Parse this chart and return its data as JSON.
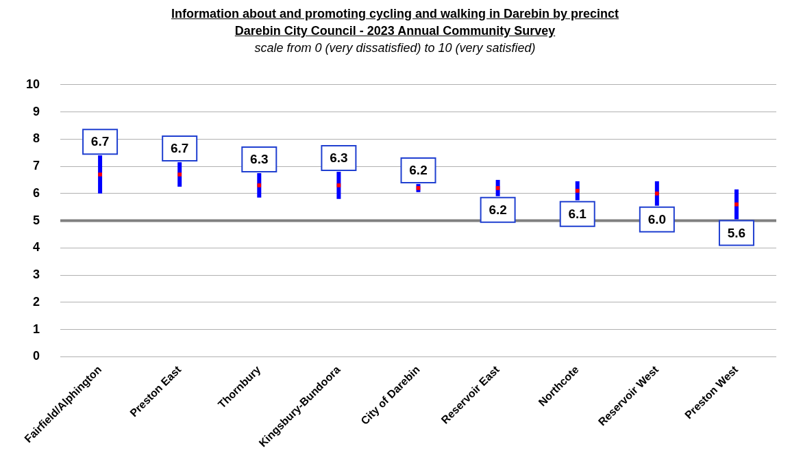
{
  "chart_data": {
    "type": "scatter",
    "title": "Information about and promoting cycling and walking in Darebin by precinct",
    "subtitle": "Darebin City Council - 2023 Annual Community Survey",
    "annotations": [
      "scale from 0 (very dissatisfied) to 10 (very satisfied)"
    ],
    "categories": [
      "Fairfield/Alphington",
      "Preston East",
      "Thornbury",
      "Kingsbury-Bundoora",
      "City of Darebin",
      "Reservoir East",
      "Northcote",
      "Reservoir West",
      "Preston West"
    ],
    "values": [
      6.7,
      6.7,
      6.3,
      6.3,
      6.2,
      6.2,
      6.1,
      6.0,
      5.6
    ],
    "errors": [
      0.7,
      0.45,
      0.45,
      0.5,
      0.15,
      0.3,
      0.35,
      0.45,
      0.55
    ],
    "value_labels": [
      "6.7",
      "6.7",
      "6.3",
      "6.3",
      "6.2",
      "6.2",
      "6.1",
      "6.0",
      "5.6"
    ],
    "color": "#ff0000",
    "marker": "square",
    "ylim": [
      0,
      10
    ],
    "yticks": [
      0,
      1,
      2,
      3,
      4,
      5,
      6,
      7,
      8,
      9,
      10
    ],
    "grid": "y",
    "ref_lines": [
      {
        "axis": "y",
        "value": 5,
        "color": "#808080"
      }
    ]
  }
}
